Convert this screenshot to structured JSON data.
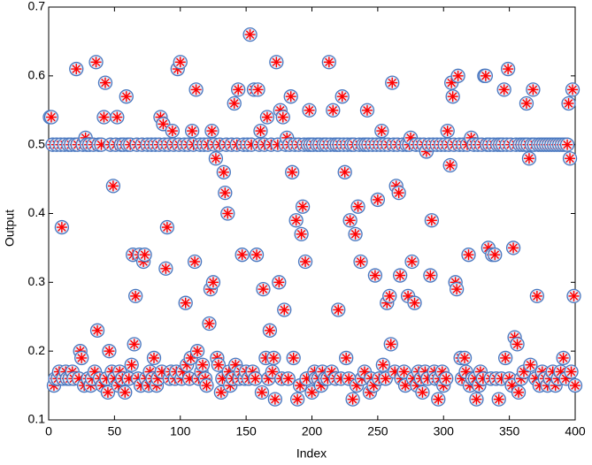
{
  "chart_data": {
    "type": "scatter",
    "xlabel": "Index",
    "ylabel": "Output",
    "xlim": [
      0,
      400
    ],
    "xticks": [
      0,
      50,
      100,
      150,
      200,
      250,
      300,
      350,
      400
    ],
    "ylim": [
      0.1,
      0.7
    ],
    "yticks": [
      0.1,
      0.2,
      0.3,
      0.4,
      0.5,
      0.6,
      0.7
    ],
    "x": [
      1,
      2,
      3,
      4,
      5,
      6,
      7,
      8,
      9,
      10,
      11,
      12,
      13,
      14,
      15,
      16,
      17,
      18,
      19,
      20,
      21,
      22,
      23,
      24,
      25,
      26,
      27,
      28,
      29,
      30,
      31,
      32,
      33,
      34,
      35,
      36,
      37,
      38,
      39,
      40,
      41,
      42,
      43,
      44,
      45,
      46,
      47,
      48,
      49,
      50,
      51,
      52,
      53,
      54,
      55,
      56,
      57,
      58,
      59,
      60,
      61,
      62,
      63,
      64,
      65,
      66,
      67,
      68,
      69,
      70,
      71,
      72,
      73,
      74,
      75,
      76,
      77,
      78,
      79,
      80,
      81,
      82,
      83,
      84,
      85,
      86,
      87,
      88,
      89,
      90,
      91,
      92,
      93,
      94,
      95,
      96,
      97,
      98,
      99,
      100,
      101,
      102,
      103,
      104,
      105,
      106,
      107,
      108,
      109,
      110,
      111,
      112,
      113,
      114,
      115,
      116,
      117,
      118,
      119,
      120,
      121,
      122,
      123,
      124,
      125,
      126,
      127,
      128,
      129,
      130,
      131,
      132,
      133,
      134,
      135,
      136,
      137,
      138,
      139,
      140,
      141,
      142,
      143,
      144,
      145,
      146,
      147,
      148,
      149,
      150,
      151,
      152,
      153,
      154,
      155,
      156,
      157,
      158,
      159,
      160,
      161,
      162,
      163,
      164,
      165,
      166,
      167,
      168,
      169,
      170,
      171,
      172,
      173,
      174,
      175,
      176,
      177,
      178,
      179,
      180,
      181,
      182,
      183,
      184,
      185,
      186,
      187,
      188,
      189,
      190,
      191,
      192,
      193,
      194,
      195,
      196,
      197,
      198,
      199,
      200,
      201,
      202,
      203,
      204,
      205,
      206,
      207,
      208,
      209,
      210,
      211,
      212,
      213,
      214,
      215,
      216,
      217,
      218,
      219,
      220,
      221,
      222,
      223,
      224,
      225,
      226,
      227,
      228,
      229,
      230,
      231,
      232,
      233,
      234,
      235,
      236,
      237,
      238,
      239,
      240,
      241,
      242,
      243,
      244,
      245,
      246,
      247,
      248,
      249,
      250,
      251,
      252,
      253,
      254,
      255,
      256,
      257,
      258,
      259,
      260,
      261,
      262,
      263,
      264,
      265,
      266,
      267,
      268,
      269,
      270,
      271,
      272,
      273,
      274,
      275,
      276,
      277,
      278,
      279,
      280,
      281,
      282,
      283,
      284,
      285,
      286,
      287,
      288,
      289,
      290,
      291,
      292,
      293,
      294,
      295,
      296,
      297,
      298,
      299,
      300,
      301,
      302,
      303,
      304,
      305,
      306,
      307,
      308,
      309,
      310,
      311,
      312,
      313,
      314,
      315,
      316,
      317,
      318,
      319,
      320,
      321,
      322,
      323,
      324,
      325,
      326,
      327,
      328,
      329,
      330,
      331,
      332,
      333,
      334,
      335,
      336,
      337,
      338,
      339,
      340,
      341,
      342,
      343,
      344,
      345,
      346,
      347,
      348,
      349,
      350,
      351,
      352,
      353,
      354,
      355,
      356,
      357,
      358,
      359,
      360,
      361,
      362,
      363,
      364,
      365,
      366,
      367,
      368,
      369,
      370,
      371,
      372,
      373,
      374,
      375,
      376,
      377,
      378,
      379,
      380,
      381,
      382,
      383,
      384,
      385,
      386,
      387,
      388,
      389,
      390,
      391,
      392,
      393,
      394,
      395,
      396,
      397,
      398,
      399,
      400
    ],
    "series": [
      {
        "color": "#ff0000",
        "edge_color": "#4a78c0",
        "values": [
          0.54,
          0.54,
          0.5,
          0.15,
          0.16,
          0.5,
          0.16,
          0.17,
          0.5,
          0.38,
          0.16,
          0.5,
          0.17,
          0.16,
          0.5,
          0.16,
          0.5,
          0.17,
          0.16,
          0.5,
          0.61,
          0.5,
          0.16,
          0.2,
          0.19,
          0.5,
          0.15,
          0.51,
          0.5,
          0.16,
          0.5,
          0.15,
          0.16,
          0.5,
          0.17,
          0.62,
          0.23,
          0.5,
          0.16,
          0.5,
          0.15,
          0.54,
          0.59,
          0.16,
          0.14,
          0.2,
          0.5,
          0.17,
          0.44,
          0.16,
          0.5,
          0.54,
          0.15,
          0.17,
          0.5,
          0.16,
          0.5,
          0.14,
          0.57,
          0.5,
          0.16,
          0.5,
          0.18,
          0.34,
          0.21,
          0.28,
          0.5,
          0.16,
          0.34,
          0.15,
          0.5,
          0.33,
          0.34,
          0.16,
          0.5,
          0.15,
          0.17,
          0.5,
          0.16,
          0.19,
          0.5,
          0.15,
          0.16,
          0.5,
          0.54,
          0.17,
          0.53,
          0.5,
          0.32,
          0.38,
          0.5,
          0.16,
          0.17,
          0.52,
          0.5,
          0.16,
          0.17,
          0.61,
          0.5,
          0.62,
          0.16,
          0.17,
          0.5,
          0.27,
          0.18,
          0.5,
          0.16,
          0.19,
          0.52,
          0.5,
          0.33,
          0.58,
          0.2,
          0.16,
          0.5,
          0.17,
          0.18,
          0.5,
          0.16,
          0.15,
          0.5,
          0.24,
          0.29,
          0.52,
          0.3,
          0.5,
          0.48,
          0.19,
          0.18,
          0.5,
          0.14,
          0.16,
          0.46,
          0.43,
          0.5,
          0.4,
          0.17,
          0.15,
          0.5,
          0.16,
          0.56,
          0.18,
          0.5,
          0.58,
          0.16,
          0.17,
          0.34,
          0.5,
          0.16,
          0.17,
          0.5,
          0.16,
          0.66,
          0.5,
          0.17,
          0.58,
          0.16,
          0.34,
          0.58,
          0.5,
          0.52,
          0.14,
          0.29,
          0.5,
          0.19,
          0.54,
          0.16,
          0.23,
          0.5,
          0.17,
          0.19,
          0.13,
          0.62,
          0.5,
          0.3,
          0.55,
          0.16,
          0.54,
          0.26,
          0.5,
          0.51,
          0.16,
          0.5,
          0.57,
          0.46,
          0.19,
          0.5,
          0.39,
          0.13,
          0.5,
          0.15,
          0.37,
          0.41,
          0.5,
          0.33,
          0.16,
          0.5,
          0.55,
          0.5,
          0.14,
          0.5,
          0.17,
          0.16,
          0.5,
          0.16,
          0.5,
          0.15,
          0.17,
          0.5,
          0.16,
          0.5,
          0.16,
          0.62,
          0.5,
          0.17,
          0.55,
          0.5,
          0.16,
          0.5,
          0.26,
          0.5,
          0.16,
          0.57,
          0.5,
          0.46,
          0.19,
          0.5,
          0.16,
          0.39,
          0.5,
          0.13,
          0.5,
          0.37,
          0.15,
          0.41,
          0.5,
          0.33,
          0.16,
          0.5,
          0.17,
          0.5,
          0.55,
          0.5,
          0.14,
          0.16,
          0.5,
          0.15,
          0.31,
          0.5,
          0.42,
          0.16,
          0.5,
          0.52,
          0.18,
          0.5,
          0.16,
          0.27,
          0.5,
          0.28,
          0.21,
          0.59,
          0.5,
          0.17,
          0.44,
          0.5,
          0.43,
          0.31,
          0.16,
          0.5,
          0.17,
          0.15,
          0.5,
          0.28,
          0.5,
          0.51,
          0.33,
          0.16,
          0.27,
          0.5,
          0.15,
          0.17,
          0.5,
          0.16,
          0.14,
          0.5,
          0.17,
          0.49,
          0.16,
          0.5,
          0.31,
          0.39,
          0.5,
          0.17,
          0.16,
          0.5,
          0.13,
          0.16,
          0.5,
          0.17,
          0.15,
          0.5,
          0.16,
          0.52,
          0.5,
          0.47,
          0.59,
          0.57,
          0.5,
          0.3,
          0.29,
          0.6,
          0.5,
          0.19,
          0.16,
          0.5,
          0.19,
          0.17,
          0.5,
          0.34,
          0.15,
          0.51,
          0.16,
          0.5,
          0.16,
          0.13,
          0.5,
          0.15,
          0.17,
          0.5,
          0.16,
          0.6,
          0.6,
          0.5,
          0.35,
          0.5,
          0.16,
          0.34,
          0.5,
          0.34,
          0.16,
          0.5,
          0.13,
          0.5,
          0.16,
          0.5,
          0.58,
          0.19,
          0.5,
          0.61,
          0.16,
          0.5,
          0.15,
          0.35,
          0.22,
          0.5,
          0.21,
          0.14,
          0.5,
          0.16,
          0.5,
          0.17,
          0.5,
          0.56,
          0.5,
          0.48,
          0.18,
          0.5,
          0.58,
          0.5,
          0.16,
          0.28,
          0.5,
          0.15,
          0.5,
          0.17,
          0.5,
          0.16,
          0.5,
          0.15,
          0.5,
          0.16,
          0.5,
          0.17,
          0.5,
          0.15,
          0.5,
          0.16,
          0.5,
          0.17,
          0.5,
          0.19,
          0.5,
          0.16,
          0.5,
          0.56,
          0.48,
          0.17,
          0.58,
          0.28,
          0.15
        ]
      }
    ]
  }
}
